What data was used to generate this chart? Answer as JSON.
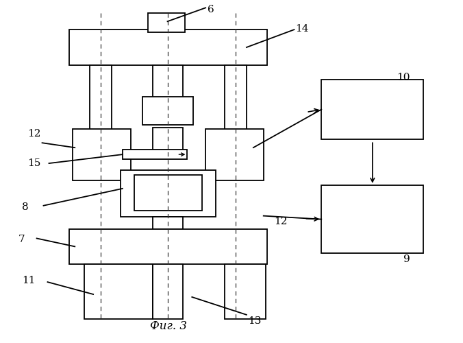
{
  "title": "Фиг. 3",
  "bg_color": "#ffffff",
  "lc": "#000000",
  "dc": "#333333",
  "fig_width": 6.76,
  "fig_height": 5.0,
  "dpi": 100
}
